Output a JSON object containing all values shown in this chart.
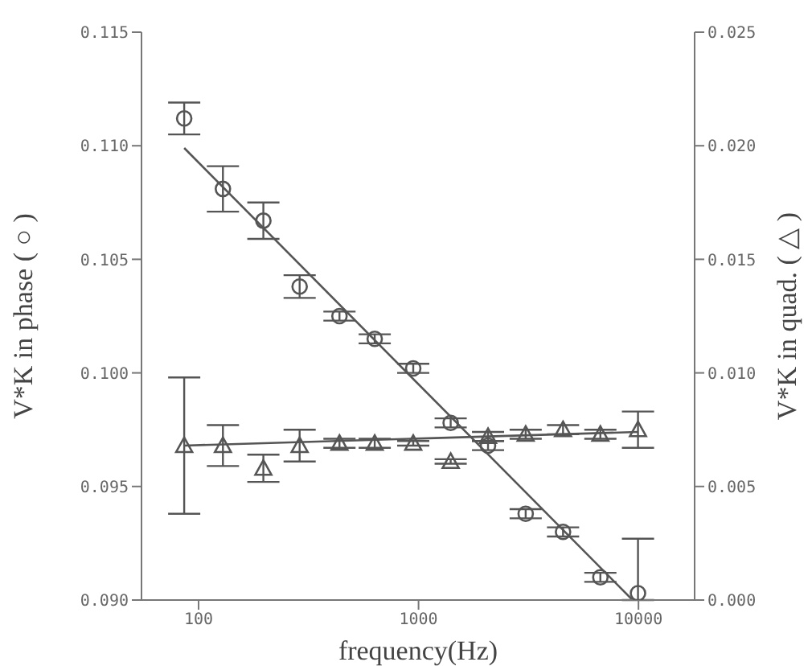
{
  "chart_data": {
    "type": "scatter",
    "xlabel": "frequency(Hz)",
    "ylabel": "V*K in phase ( ○ )",
    "y2label": "V*K in quad. ( △ )",
    "log": "x",
    "xlim": [
      55,
      18000
    ],
    "xticks": [
      100,
      1000,
      10000
    ],
    "ylim": [
      0.09,
      0.115
    ],
    "yticks": [
      {
        "value": 0.09,
        "label": "0.090"
      },
      {
        "value": 0.095,
        "label": "0.095"
      },
      {
        "value": 0.1,
        "label": "0.100"
      },
      {
        "value": 0.105,
        "label": "0.105"
      },
      {
        "value": 0.11,
        "label": "0.110"
      },
      {
        "value": 0.115,
        "label": "0.115"
      }
    ],
    "y2lim": [
      0,
      0.025
    ],
    "y2ticks": [
      {
        "value": 0,
        "label": "0.000"
      },
      {
        "value": 0.005,
        "label": "0.005"
      },
      {
        "value": 0.01,
        "label": "0.010"
      },
      {
        "value": 0.015,
        "label": "0.015"
      },
      {
        "value": 0.02,
        "label": "0.020"
      },
      {
        "value": 0.025,
        "label": "0.025"
      }
    ],
    "series": [
      {
        "marker": "circle",
        "color": "#555555",
        "x": [
          86,
          129,
          197,
          288,
          437,
          632,
          946,
          1400,
          2070,
          3070,
          4540,
          6710,
          9950
        ],
        "values": [
          0.1112,
          0.1081,
          0.1067,
          0.1038,
          0.1025,
          0.1015,
          0.1002,
          0.0978,
          0.0968,
          0.0938,
          0.093,
          0.091,
          0.0903
        ],
        "errors": [
          0.0007,
          0.001,
          0.0008,
          0.0005,
          0.0002,
          0.0002,
          0.0002,
          0.0002,
          0.0002,
          0.0002,
          0.0002,
          0.0002,
          [
            0.09,
            0.0927
          ]
        ]
      },
      {
        "type": "scatter",
        "marker": "triangle",
        "axis": "y2",
        "color": "#555555",
        "x": [
          86,
          129,
          197,
          288,
          437,
          632,
          946,
          1400,
          2070,
          3070,
          4540,
          6710,
          9950
        ],
        "values": [
          0.0068,
          0.0068,
          0.0058,
          0.0068,
          0.0069,
          0.0069,
          0.0069,
          0.0061,
          0.0072,
          0.0073,
          0.0075,
          0.0073,
          0.0075
        ],
        "errors": [
          0.003,
          0.0009,
          0.0006,
          0.0007,
          0.0002,
          0.0002,
          0.0001,
          0.0001,
          0.0002,
          0.0002,
          0.0002,
          0.0002,
          0.0008
        ]
      },
      {
        "type": "line",
        "marker": "none",
        "color": "#555555",
        "x": [
          86,
          9400
        ],
        "values": [
          0.1099,
          0.09
        ]
      },
      {
        "type": "line",
        "marker": "none",
        "axis": "y2",
        "color": "#555555",
        "x": [
          86,
          9950
        ],
        "values": [
          0.0068,
          0.0074
        ]
      }
    ]
  }
}
